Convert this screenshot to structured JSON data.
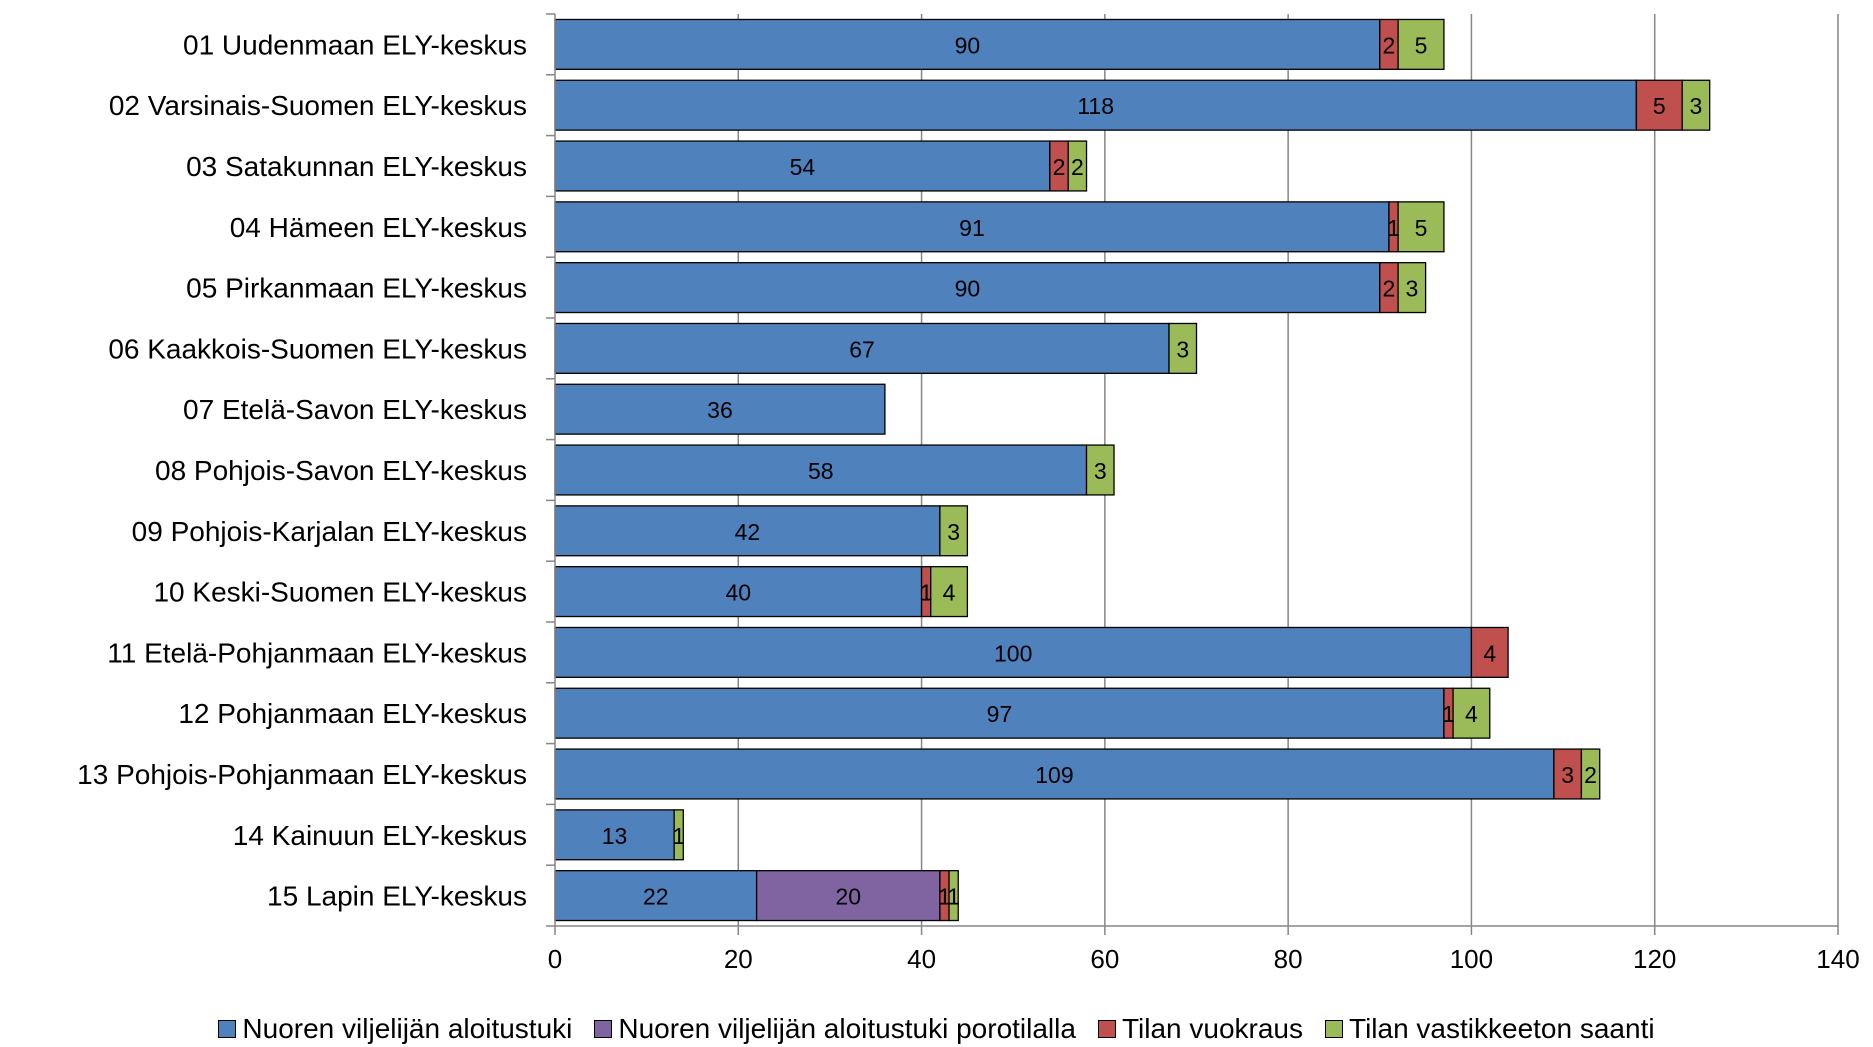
{
  "chart_data": {
    "type": "bar",
    "orientation": "horizontal",
    "stacked": true,
    "title": "",
    "xlabel": "",
    "ylabel": "",
    "xlim": [
      0,
      140
    ],
    "x_ticks": [
      0,
      20,
      40,
      60,
      80,
      100,
      120,
      140
    ],
    "grid": "vertical",
    "legend_position": "bottom",
    "categories": [
      "01 Uudenmaan ELY-keskus",
      "02 Varsinais-Suomen ELY-keskus",
      "03 Satakunnan ELY-keskus",
      "04 Hämeen ELY-keskus",
      "05 Pirkanmaan ELY-keskus",
      "06 Kaakkois-Suomen ELY-keskus",
      "07 Etelä-Savon ELY-keskus",
      "08 Pohjois-Savon ELY-keskus",
      "09 Pohjois-Karjalan ELY-keskus",
      "10 Keski-Suomen ELY-keskus",
      "11 Etelä-Pohjanmaan ELY-keskus",
      "12 Pohjanmaan ELY-keskus",
      "13 Pohjois-Pohjanmaan ELY-keskus",
      "14 Kainuun ELY-keskus",
      "15 Lapin ELY-keskus"
    ],
    "series": [
      {
        "name": "Nuoren viljelijän aloitustuki",
        "color": "#4f81bd",
        "values": [
          90,
          118,
          54,
          91,
          90,
          67,
          36,
          58,
          42,
          40,
          100,
          97,
          109,
          13,
          22
        ]
      },
      {
        "name": "Nuoren viljelijän aloitustuki porotilalla",
        "color": "#8064a2",
        "values": [
          0,
          0,
          0,
          0,
          0,
          0,
          0,
          0,
          0,
          0,
          0,
          0,
          0,
          0,
          20
        ]
      },
      {
        "name": "Tilan vuokraus",
        "color": "#c0504d",
        "values": [
          2,
          5,
          2,
          1,
          2,
          0,
          0,
          0,
          0,
          1,
          4,
          1,
          3,
          0,
          1
        ]
      },
      {
        "name": "Tilan vastikkeeton saanti",
        "color": "#9bbb59",
        "values": [
          5,
          3,
          2,
          5,
          3,
          3,
          0,
          3,
          3,
          4,
          0,
          4,
          2,
          1,
          1
        ]
      }
    ]
  }
}
